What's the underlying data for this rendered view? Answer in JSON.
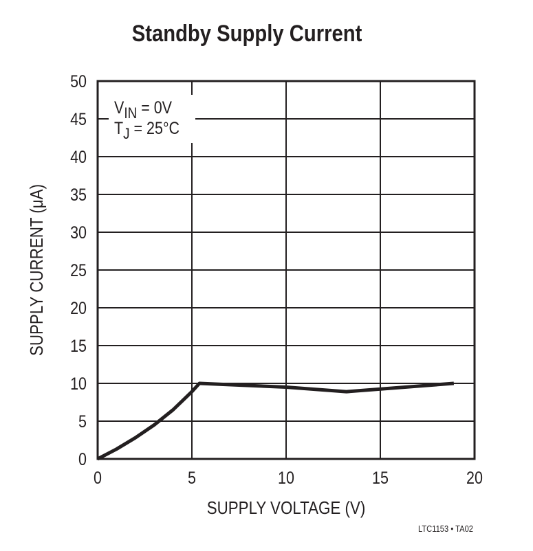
{
  "chart_data": {
    "type": "line",
    "title": "Standby Supply Current",
    "xlabel": "SUPPLY VOLTAGE (V)",
    "ylabel": "SUPPLY CURRENT (μA)",
    "xlim": [
      0,
      20
    ],
    "ylim": [
      0,
      50
    ],
    "xticks": [
      0,
      5,
      10,
      15,
      20
    ],
    "yticks": [
      0,
      5,
      10,
      15,
      20,
      25,
      30,
      35,
      40,
      45,
      50
    ],
    "grid": true,
    "annotations": [
      "V_IN = 0V",
      "T_J = 25°C"
    ],
    "footnote": "LTC1153 • TA02",
    "series": [
      {
        "name": "Standby Supply Current",
        "x": [
          0,
          1,
          2,
          3,
          4,
          5,
          5.4,
          10,
          13.2,
          18.9
        ],
        "y": [
          0,
          1.3,
          2.8,
          4.5,
          6.5,
          8.9,
          10,
          9.5,
          8.9,
          10
        ]
      }
    ]
  },
  "labels": {
    "title": "Standby Supply Current",
    "xlabel": "SUPPLY VOLTAGE (V)",
    "ylabel": "SUPPLY CURRENT (μA)",
    "annot_v": "V",
    "annot_v_sub": "IN",
    "annot_v_rest": " = 0V",
    "annot_t": "T",
    "annot_t_sub": "J",
    "annot_t_rest": " = 25°C",
    "footnote": "LTC1153 • TA02"
  }
}
